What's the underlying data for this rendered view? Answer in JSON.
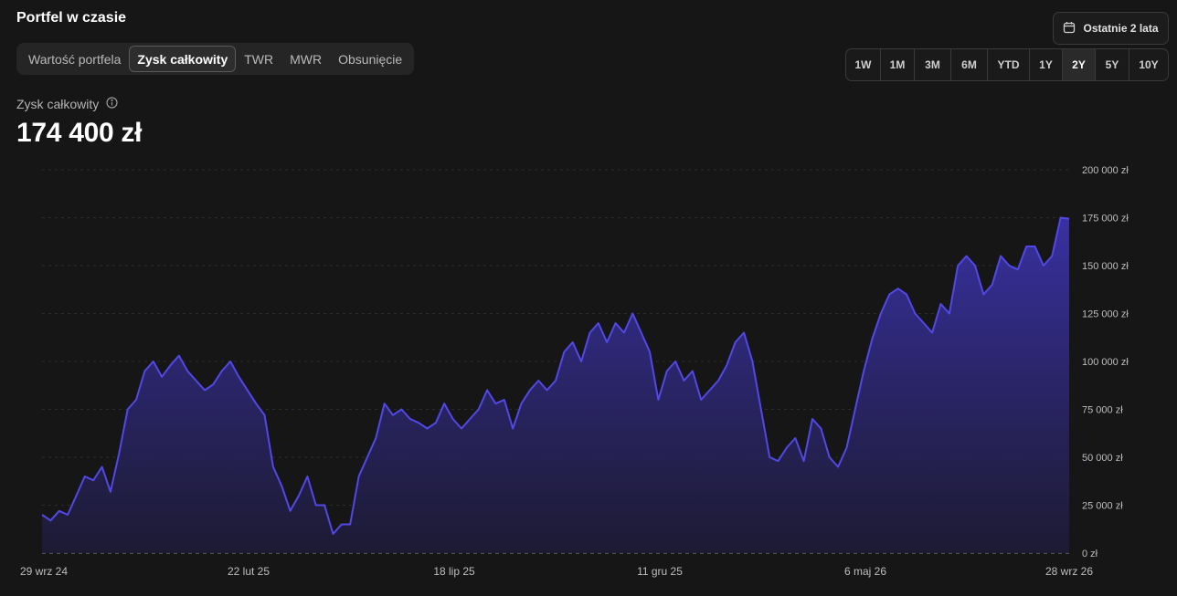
{
  "page": {
    "title": "Portfel w czasie"
  },
  "tabs": [
    {
      "label": "Wartość portfela",
      "active": false
    },
    {
      "label": "Zysk całkowity",
      "active": true
    },
    {
      "label": "TWR",
      "active": false
    },
    {
      "label": "MWR",
      "active": false
    },
    {
      "label": "Obsunięcie",
      "active": false
    }
  ],
  "period": {
    "label": "Ostatnie 2 lata",
    "icon": "calendar-icon"
  },
  "ranges": [
    {
      "label": "1W",
      "active": false
    },
    {
      "label": "1M",
      "active": false
    },
    {
      "label": "3M",
      "active": false
    },
    {
      "label": "6M",
      "active": false
    },
    {
      "label": "YTD",
      "active": false
    },
    {
      "label": "1Y",
      "active": false
    },
    {
      "label": "2Y",
      "active": true
    },
    {
      "label": "5Y",
      "active": false
    },
    {
      "label": "10Y",
      "active": false
    }
  ],
  "metric": {
    "label": "Zysk całkowity",
    "value": "174 400 zł",
    "info_icon": "info-icon"
  },
  "colors": {
    "accent": "#5248e8",
    "background": "#161616"
  },
  "chart_data": {
    "type": "area",
    "ylim": [
      0,
      200000
    ],
    "y_ticks": [
      "0 zł",
      "25 000 zł",
      "50 000 zł",
      "75 000 zł",
      "100 000 zł",
      "125 000 zł",
      "150 000 zł",
      "175 000 zł",
      "200 000 zł"
    ],
    "x_ticks": [
      "29 wrz 24",
      "22 lut 25",
      "18 lip 25",
      "11 gru 25",
      "6 maj 26",
      "28 wrz 26"
    ],
    "grid": true,
    "series": [
      {
        "x_start": "29 wrz 24",
        "x_end": "28 wrz 26",
        "values": [
          20000,
          17000,
          22000,
          20000,
          30000,
          40000,
          38000,
          45000,
          32000,
          52000,
          75000,
          80000,
          95000,
          100000,
          92000,
          98000,
          103000,
          95000,
          90000,
          85000,
          88000,
          95000,
          100000,
          92000,
          85000,
          78000,
          72000,
          45000,
          35000,
          22000,
          30000,
          40000,
          25000,
          25000,
          10000,
          15000,
          15000,
          40000,
          50000,
          60000,
          78000,
          72000,
          75000,
          70000,
          68000,
          65000,
          68000,
          78000,
          70000,
          65000,
          70000,
          75000,
          85000,
          78000,
          80000,
          65000,
          78000,
          85000,
          90000,
          85000,
          90000,
          105000,
          110000,
          100000,
          115000,
          120000,
          110000,
          120000,
          115000,
          125000,
          115000,
          105000,
          80000,
          95000,
          100000,
          90000,
          95000,
          80000,
          85000,
          90000,
          98000,
          110000,
          115000,
          100000,
          75000,
          50000,
          48000,
          55000,
          60000,
          48000,
          70000,
          65000,
          50000,
          45000,
          55000,
          75000,
          95000,
          112000,
          125000,
          135000,
          138000,
          135000,
          125000,
          120000,
          115000,
          130000,
          125000,
          150000,
          155000,
          150000,
          135000,
          140000,
          155000,
          150000,
          148000,
          160000,
          160000,
          150000,
          155000,
          175000,
          174400
        ]
      }
    ]
  }
}
